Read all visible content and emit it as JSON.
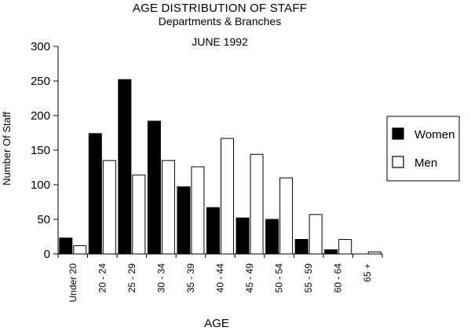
{
  "chart_data": {
    "type": "bar",
    "title": "AGE DISTRIBUTION OF STAFF",
    "subtitle": "Departments & Branches",
    "date": "JUNE 1992",
    "xlabel": "AGE",
    "ylabel": "Number Of Staff",
    "ylim": [
      0,
      300
    ],
    "yticks": [
      "0",
      "50",
      "100",
      "150",
      "200",
      "250",
      "300"
    ],
    "categories": [
      "Under 20",
      "20 - 24",
      "25 - 29",
      "30 - 34",
      "35 - 39",
      "40 - 44",
      "45 - 49",
      "50 - 54",
      "55 - 59",
      "60 - 64",
      "65 +"
    ],
    "series": [
      {
        "name": "Women",
        "color": "#000000",
        "values": [
          23,
          174,
          252,
          192,
          97,
          67,
          52,
          50,
          21,
          6,
          0
        ]
      },
      {
        "name": "Men",
        "color": "#ffffff",
        "values": [
          12,
          135,
          114,
          135,
          126,
          167,
          144,
          110,
          57,
          21,
          3
        ]
      }
    ],
    "legend_position": "right",
    "grid": false
  }
}
